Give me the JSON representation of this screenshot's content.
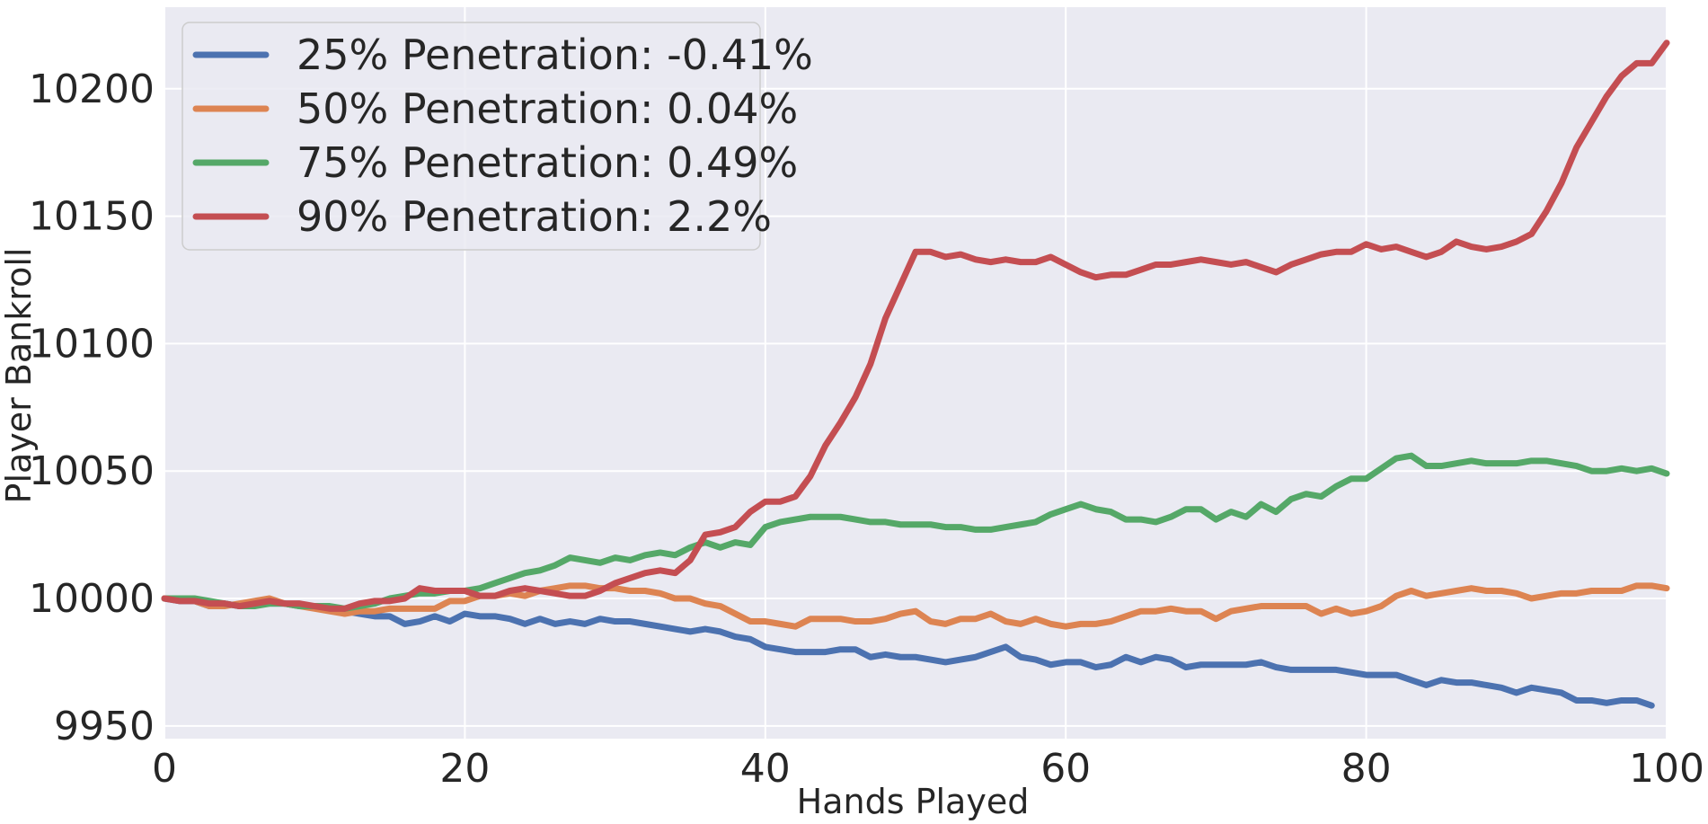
{
  "chart_data": {
    "type": "line",
    "xlabel": "Hands Played",
    "ylabel": "Player Bankroll",
    "xlim": [
      0,
      100
    ],
    "ylim": [
      9945,
      10232
    ],
    "x_ticks": [
      0,
      20,
      40,
      60,
      80,
      100
    ],
    "y_ticks": [
      9950,
      10000,
      10050,
      10100,
      10150,
      10200
    ],
    "grid": true,
    "legend_position": "top-left",
    "background_color": "#eaeaf2",
    "grid_color": "#ffffff",
    "series": [
      {
        "name": "25% Penetration: -0.41%",
        "color": "#4c72b0",
        "values": [
          10000,
          9999,
          9999,
          9997,
          9998,
          9997,
          9998,
          9998,
          9998,
          9997,
          9997,
          9996,
          9995,
          9994,
          9993,
          9993,
          9990,
          9991,
          9993,
          9991,
          9994,
          9993,
          9993,
          9992,
          9990,
          9992,
          9990,
          9991,
          9990,
          9992,
          9991,
          9991,
          9990,
          9989,
          9988,
          9987,
          9988,
          9987,
          9985,
          9984,
          9981,
          9980,
          9979,
          9979,
          9979,
          9980,
          9980,
          9977,
          9978,
          9977,
          9977,
          9976,
          9975,
          9976,
          9977,
          9979,
          9981,
          9977,
          9976,
          9974,
          9975,
          9975,
          9973,
          9974,
          9977,
          9975,
          9977,
          9976,
          9973,
          9974,
          9974,
          9974,
          9974,
          9975,
          9973,
          9972,
          9972,
          9972,
          9972,
          9971,
          9970,
          9970,
          9970,
          9968,
          9966,
          9968,
          9967,
          9967,
          9966,
          9965,
          9963,
          9965,
          9964,
          9963,
          9960,
          9960,
          9959,
          9960,
          9960,
          9958
        ]
      },
      {
        "name": "50% Penetration: 0.04%",
        "color": "#dd8452",
        "values": [
          10000,
          10000,
          9999,
          9997,
          9997,
          9998,
          9999,
          10000,
          9998,
          9997,
          9996,
          9995,
          9994,
          9995,
          9995,
          9996,
          9996,
          9996,
          9996,
          9999,
          9999,
          10001,
          10001,
          10002,
          10001,
          10003,
          10004,
          10005,
          10005,
          10004,
          10004,
          10003,
          10003,
          10002,
          10000,
          10000,
          9998,
          9997,
          9994,
          9991,
          9991,
          9990,
          9989,
          9992,
          9992,
          9992,
          9991,
          9991,
          9992,
          9994,
          9995,
          9991,
          9990,
          9992,
          9992,
          9994,
          9991,
          9990,
          9992,
          9990,
          9989,
          9990,
          9990,
          9991,
          9993,
          9995,
          9995,
          9996,
          9995,
          9995,
          9992,
          9995,
          9996,
          9997,
          9997,
          9997,
          9997,
          9994,
          9996,
          9994,
          9995,
          9997,
          10001,
          10003,
          10001,
          10002,
          10003,
          10004,
          10003,
          10003,
          10002,
          10000,
          10001,
          10002,
          10002,
          10003,
          10003,
          10003,
          10005,
          10005,
          10004
        ]
      },
      {
        "name": "75% Penetration: 0.49%",
        "color": "#55a868",
        "values": [
          10000,
          10000,
          10000,
          9999,
          9998,
          9997,
          9997,
          9998,
          9998,
          9997,
          9997,
          9997,
          9996,
          9997,
          9998,
          10000,
          10001,
          10002,
          10002,
          10003,
          10003,
          10004,
          10006,
          10008,
          10010,
          10011,
          10013,
          10016,
          10015,
          10014,
          10016,
          10015,
          10017,
          10018,
          10017,
          10020,
          10022,
          10020,
          10022,
          10021,
          10028,
          10030,
          10031,
          10032,
          10032,
          10032,
          10031,
          10030,
          10030,
          10029,
          10029,
          10029,
          10028,
          10028,
          10027,
          10027,
          10028,
          10029,
          10030,
          10033,
          10035,
          10037,
          10035,
          10034,
          10031,
          10031,
          10030,
          10032,
          10035,
          10035,
          10031,
          10034,
          10032,
          10037,
          10034,
          10039,
          10041,
          10040,
          10044,
          10047,
          10047,
          10051,
          10055,
          10056,
          10052,
          10052,
          10053,
          10054,
          10053,
          10053,
          10053,
          10054,
          10054,
          10053,
          10052,
          10050,
          10050,
          10051,
          10050,
          10051,
          10049
        ]
      },
      {
        "name": "90% Penetration: 2.2%",
        "color": "#c44e52",
        "values": [
          10000,
          9999,
          9999,
          9998,
          9998,
          9997,
          9998,
          9999,
          9998,
          9998,
          9997,
          9996,
          9996,
          9998,
          9999,
          9999,
          10000,
          10004,
          10003,
          10003,
          10003,
          10001,
          10001,
          10003,
          10004,
          10003,
          10002,
          10001,
          10001,
          10003,
          10006,
          10008,
          10010,
          10011,
          10010,
          10015,
          10025,
          10026,
          10028,
          10034,
          10038,
          10038,
          10040,
          10048,
          10060,
          10069,
          10079,
          10092,
          10110,
          10123,
          10136,
          10136,
          10134,
          10135,
          10133,
          10132,
          10133,
          10132,
          10132,
          10134,
          10131,
          10128,
          10126,
          10127,
          10127,
          10129,
          10131,
          10131,
          10132,
          10133,
          10132,
          10131,
          10132,
          10130,
          10128,
          10131,
          10133,
          10135,
          10136,
          10136,
          10139,
          10137,
          10138,
          10136,
          10134,
          10136,
          10140,
          10138,
          10137,
          10138,
          10140,
          10143,
          10152,
          10163,
          10177,
          10187,
          10197,
          10205,
          10210,
          10210,
          10218
        ]
      }
    ]
  }
}
